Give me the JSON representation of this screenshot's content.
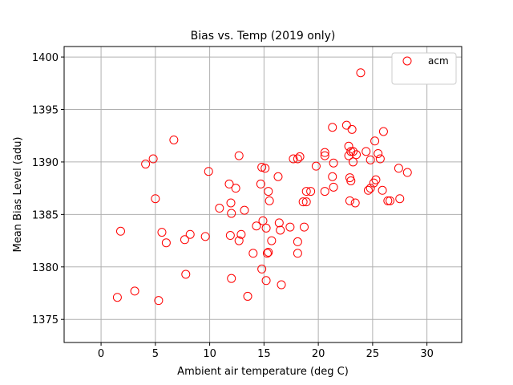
{
  "chart_data": {
    "type": "scatter",
    "title": "Bias vs. Temp (2019 only)",
    "xlabel": "Ambient air temperature (deg C)",
    "ylabel": "Mean Bias Level (adu)",
    "xlim": [
      -3.4,
      33.2
    ],
    "ylim": [
      1372.8,
      1401.0
    ],
    "xticks": [
      0,
      5,
      10,
      15,
      20,
      25,
      30
    ],
    "yticks": [
      1375,
      1380,
      1385,
      1390,
      1395,
      1400
    ],
    "grid": true,
    "legend_position": "top-right",
    "marker": "open-circle",
    "series": [
      {
        "name": "acm",
        "color": "#ff0000",
        "points": [
          [
            1.5,
            1377.1
          ],
          [
            1.8,
            1383.4
          ],
          [
            3.1,
            1377.7
          ],
          [
            4.1,
            1389.8
          ],
          [
            4.8,
            1390.3
          ],
          [
            5.0,
            1386.5
          ],
          [
            5.3,
            1376.8
          ],
          [
            5.6,
            1383.3
          ],
          [
            6.0,
            1382.3
          ],
          [
            6.7,
            1392.1
          ],
          [
            7.7,
            1382.6
          ],
          [
            7.8,
            1379.3
          ],
          [
            8.2,
            1383.1
          ],
          [
            9.6,
            1382.9
          ],
          [
            9.9,
            1389.1
          ],
          [
            10.9,
            1385.6
          ],
          [
            11.8,
            1387.9
          ],
          [
            11.9,
            1383.0
          ],
          [
            11.95,
            1386.1
          ],
          [
            12.0,
            1385.1
          ],
          [
            12.0,
            1378.9
          ],
          [
            12.4,
            1387.5
          ],
          [
            12.7,
            1382.5
          ],
          [
            12.7,
            1390.6
          ],
          [
            12.9,
            1383.1
          ],
          [
            13.2,
            1385.4
          ],
          [
            13.5,
            1377.2
          ],
          [
            14.0,
            1381.3
          ],
          [
            14.3,
            1383.9
          ],
          [
            14.7,
            1387.9
          ],
          [
            14.8,
            1389.5
          ],
          [
            14.8,
            1379.8
          ],
          [
            14.9,
            1384.4
          ],
          [
            15.1,
            1389.4
          ],
          [
            15.2,
            1383.7
          ],
          [
            15.2,
            1378.7
          ],
          [
            15.3,
            1381.3
          ],
          [
            15.4,
            1381.4
          ],
          [
            15.4,
            1387.2
          ],
          [
            15.5,
            1386.3
          ],
          [
            15.7,
            1382.5
          ],
          [
            16.3,
            1388.6
          ],
          [
            16.4,
            1384.2
          ],
          [
            16.5,
            1383.5
          ],
          [
            16.6,
            1378.3
          ],
          [
            17.4,
            1383.8
          ],
          [
            17.7,
            1390.3
          ],
          [
            18.1,
            1390.3
          ],
          [
            18.1,
            1382.4
          ],
          [
            18.1,
            1381.3
          ],
          [
            18.3,
            1390.5
          ],
          [
            18.6,
            1386.2
          ],
          [
            18.7,
            1383.8
          ],
          [
            18.9,
            1386.2
          ],
          [
            18.9,
            1387.2
          ],
          [
            19.3,
            1387.2
          ],
          [
            19.8,
            1389.6
          ],
          [
            20.6,
            1390.6
          ],
          [
            20.6,
            1390.9
          ],
          [
            20.6,
            1387.2
          ],
          [
            21.3,
            1393.3
          ],
          [
            21.3,
            1388.6
          ],
          [
            21.4,
            1389.9
          ],
          [
            21.4,
            1387.6
          ],
          [
            22.6,
            1393.5
          ],
          [
            22.8,
            1391.5
          ],
          [
            22.8,
            1390.6
          ],
          [
            22.9,
            1388.5
          ],
          [
            22.9,
            1386.3
          ],
          [
            23.0,
            1391.0
          ],
          [
            23.0,
            1388.2
          ],
          [
            23.1,
            1393.1
          ],
          [
            23.2,
            1390.0
          ],
          [
            23.2,
            1391.0
          ],
          [
            23.4,
            1386.1
          ],
          [
            23.5,
            1390.7
          ],
          [
            23.9,
            1398.5
          ],
          [
            24.4,
            1391.0
          ],
          [
            24.6,
            1387.3
          ],
          [
            24.8,
            1387.5
          ],
          [
            24.8,
            1390.2
          ],
          [
            25.1,
            1388.0
          ],
          [
            25.2,
            1392.0
          ],
          [
            25.3,
            1388.3
          ],
          [
            25.5,
            1390.8
          ],
          [
            25.7,
            1390.3
          ],
          [
            25.9,
            1387.3
          ],
          [
            26.0,
            1392.9
          ],
          [
            26.4,
            1386.3
          ],
          [
            26.6,
            1386.3
          ],
          [
            27.4,
            1389.4
          ],
          [
            27.5,
            1386.5
          ],
          [
            28.2,
            1389.0
          ]
        ]
      }
    ]
  }
}
